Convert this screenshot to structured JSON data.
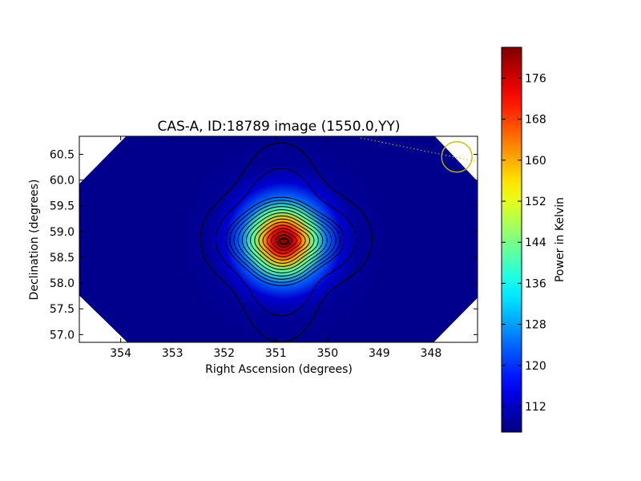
{
  "chart_data": {
    "type": "heatmap",
    "title": "CAS-A, ID:18789 image (1550.0,YY)",
    "xlabel": "Right Ascension (degrees)",
    "ylabel": "Declination (degrees)",
    "xlim": [
      354.8,
      347.1
    ],
    "ylim": [
      56.85,
      60.85
    ],
    "x_ticks": [
      354,
      353,
      352,
      351,
      350,
      349,
      348
    ],
    "y_ticks": [
      57.0,
      57.5,
      58.0,
      58.5,
      59.0,
      59.5,
      60.0,
      60.5
    ],
    "grid": false,
    "colormap": "jet",
    "source": {
      "ra": 350.85,
      "dec": 58.82,
      "peak": 181,
      "background": 108
    },
    "colorbar": {
      "label": "Power in Kelvin",
      "vmin": 107,
      "vmax": 182,
      "ticks": [
        112,
        120,
        128,
        136,
        144,
        152,
        160,
        168,
        176
      ]
    },
    "beam_marker": {
      "ra": 347.5,
      "dec": 60.45,
      "color": "#bfbf00"
    }
  }
}
